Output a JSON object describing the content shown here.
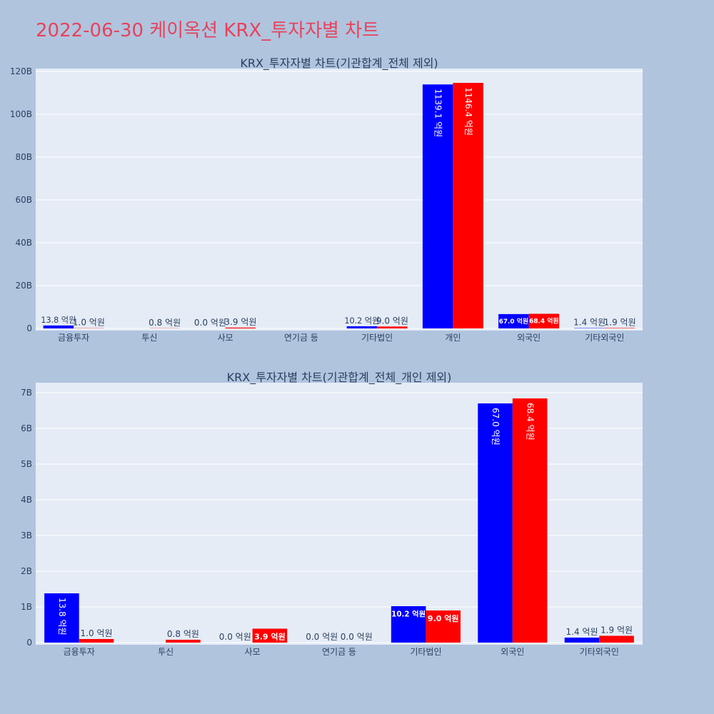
{
  "page": {
    "title": "2022-06-30 케이옥션 KRX_투자자별 차트"
  },
  "colors": {
    "background": "#b0c4de",
    "plot_background": "#e5ecf6",
    "title": "#e8425a",
    "sell": "#0000ff",
    "buy": "#ff0000",
    "text": "#2a3f5f"
  },
  "chart_data": [
    {
      "type": "bar",
      "title": "KRX_투자자별 차트(기관합계_전체 제외)",
      "categories": [
        "금융투자",
        "투신",
        "사모",
        "연기금 등",
        "기타법인",
        "개인",
        "외국인",
        "기타외국인"
      ],
      "ylim": [
        0,
        120000000000
      ],
      "yticks": [
        0,
        20000000000,
        40000000000,
        60000000000,
        80000000000,
        100000000000,
        120000000000
      ],
      "ytick_labels": [
        "0",
        "20B",
        "40B",
        "60B",
        "80B",
        "100B",
        "120B"
      ],
      "grid": true,
      "series": [
        {
          "color": "#0000ff",
          "values": [
            1380000000,
            null,
            0,
            null,
            1020000000,
            113910000000,
            6700000000,
            140000000
          ],
          "labels": [
            "13.8 억원",
            "",
            "0.0 억원",
            "",
            "10.2 억원",
            "1139.1 억원",
            "67.0 억원",
            "1.4 억원"
          ]
        },
        {
          "color": "#ff0000",
          "values": [
            100000000,
            80000000,
            390000000,
            null,
            900000000,
            114640000000,
            6840000000,
            190000000
          ],
          "labels": [
            "1.0 억원",
            "0.8 억원",
            "3.9 억원",
            "",
            "9.0 억원",
            "1146.4 억원",
            "68.4 억원",
            "1.9 억원"
          ]
        }
      ]
    },
    {
      "type": "bar",
      "title": "KRX_투자자별 차트(기관합계_전체_개인 제외)",
      "categories": [
        "금융투자",
        "투신",
        "사모",
        "연기금 등",
        "기타법인",
        "외국인",
        "기타외국인"
      ],
      "ylim": [
        0,
        7200000000
      ],
      "yticks": [
        0,
        1000000000,
        2000000000,
        3000000000,
        4000000000,
        5000000000,
        6000000000,
        7000000000
      ],
      "ytick_labels": [
        "0",
        "1B",
        "2B",
        "3B",
        "4B",
        "5B",
        "6B",
        "7B"
      ],
      "grid": true,
      "series": [
        {
          "color": "#0000ff",
          "values": [
            1380000000,
            null,
            0,
            0,
            1020000000,
            6700000000,
            140000000
          ],
          "labels": [
            "13.8 억원",
            "",
            "0.0 억원",
            "0.0 억원",
            "10.2 억원",
            "67.0 억원",
            "1.4 억원"
          ]
        },
        {
          "color": "#ff0000",
          "values": [
            100000000,
            80000000,
            390000000,
            0,
            900000000,
            6840000000,
            190000000
          ],
          "labels": [
            "1.0 억원",
            "0.8 억원",
            "3.9 억원",
            "0.0 억원",
            "9.0 억원",
            "68.4 억원",
            "1.9 억원"
          ]
        }
      ]
    }
  ]
}
